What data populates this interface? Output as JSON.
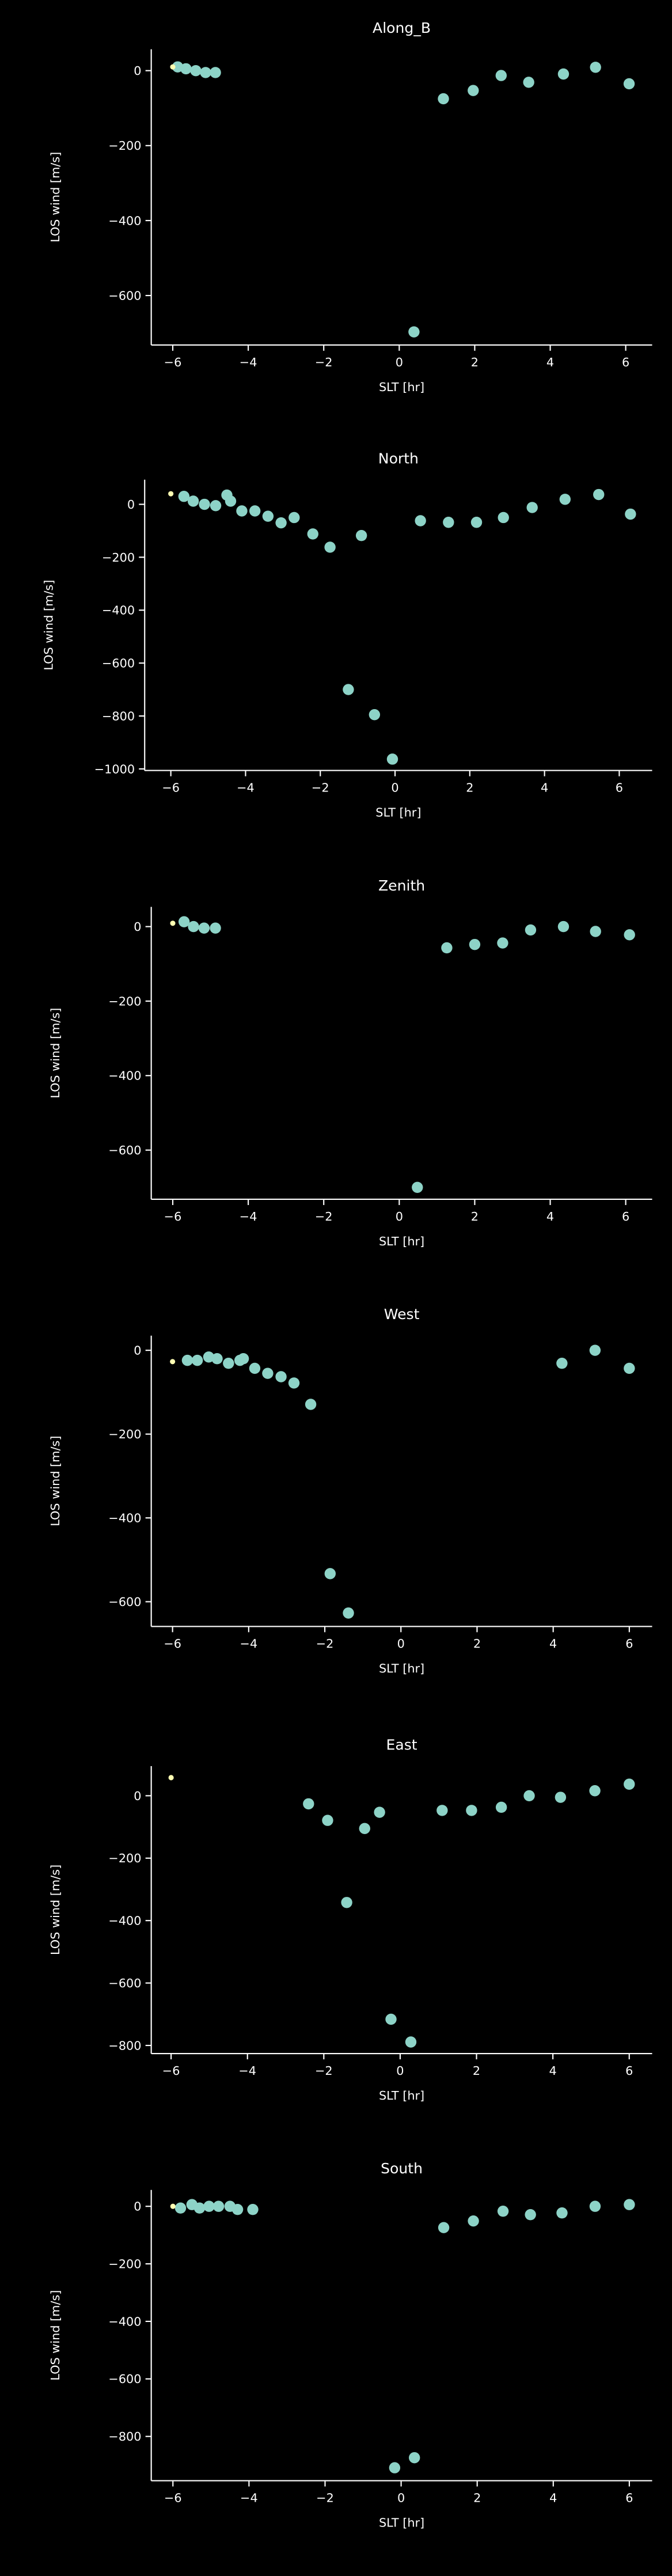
{
  "chart_data": [
    {
      "type": "scatter",
      "title": "Along_B",
      "xlabel": "SLT [hr]",
      "ylabel": "LOS wind [m/s]",
      "xlim": [
        -6.57,
        6.7
      ],
      "ylim": [
        -732,
        57
      ],
      "xticks": [
        {
          "value": -6,
          "label": "−6"
        },
        {
          "value": -4,
          "label": "−4"
        },
        {
          "value": -2,
          "label": "−2"
        },
        0,
        2,
        4,
        6
      ],
      "yticks": [
        0,
        {
          "value": -200,
          "label": "−200"
        },
        {
          "value": -400,
          "label": "−400"
        },
        {
          "value": -600,
          "label": "−600"
        }
      ],
      "series": [
        {
          "color": "#8dd3c7",
          "x": [
            -5.87,
            -5.65,
            -5.39,
            -5.13,
            -4.87,
            0.39,
            1.17,
            1.96,
            2.7,
            3.43,
            4.35,
            5.2,
            6.09
          ],
          "values": [
            10,
            5,
            0,
            -5,
            -5,
            -697,
            -75,
            -53,
            -13,
            -31,
            -9,
            9,
            -35
          ]
        },
        {
          "color": "#ffffb3",
          "x": [
            -6.0
          ],
          "values": [
            10
          ]
        }
      ]
    },
    {
      "type": "scatter",
      "title": "North",
      "xlabel": "SLT [hr]",
      "ylabel": "LOS wind [m/s]",
      "xlim": [
        -6.7,
        6.88
      ],
      "ylim": [
        -1006,
        93
      ],
      "xticks": [
        {
          "value": -6,
          "label": "−6"
        },
        {
          "value": -4,
          "label": "−4"
        },
        {
          "value": -2,
          "label": "−2"
        },
        0,
        2,
        4,
        6
      ],
      "yticks": [
        0,
        {
          "value": -200,
          "label": "−200"
        },
        {
          "value": -400,
          "label": "−400"
        },
        {
          "value": -600,
          "label": "−600"
        },
        {
          "value": -800,
          "label": "−800"
        },
        {
          "value": -1000,
          "label": "−1000"
        }
      ],
      "series": [
        {
          "color": "#8dd3c7",
          "x": [
            -5.65,
            -5.4,
            -5.1,
            -4.8,
            -4.5,
            -4.4,
            -4.1,
            -3.75,
            -3.4,
            -3.05,
            -2.7,
            -2.2,
            -1.74,
            -1.25,
            -0.9,
            -0.55,
            -0.07,
            0.68,
            1.43,
            2.18,
            2.9,
            3.67,
            4.55,
            5.45,
            6.3
          ],
          "values": [
            30,
            12,
            0,
            -5,
            35,
            12,
            -25,
            -25,
            -45,
            -70,
            -50,
            -112,
            -162,
            -700,
            -118,
            -795,
            -963,
            -62,
            -68,
            -68,
            -50,
            -12,
            19,
            37,
            -37
          ]
        },
        {
          "color": "#ffffb3",
          "x": [
            -6.0
          ],
          "values": [
            40
          ]
        }
      ]
    },
    {
      "type": "scatter",
      "title": "Zenith",
      "xlabel": "SLT [hr]",
      "ylabel": "LOS wind [m/s]",
      "xlim": [
        -6.57,
        6.7
      ],
      "ylim": [
        -732,
        53
      ],
      "xticks": [
        {
          "value": -6,
          "label": "−6"
        },
        {
          "value": -4,
          "label": "−4"
        },
        {
          "value": -2,
          "label": "−2"
        },
        0,
        2,
        4,
        6
      ],
      "yticks": [
        0,
        {
          "value": -200,
          "label": "−200"
        },
        {
          "value": -400,
          "label": "−400"
        },
        {
          "value": -600,
          "label": "−600"
        }
      ],
      "series": [
        {
          "color": "#8dd3c7",
          "x": [
            -5.7,
            -5.45,
            -5.17,
            -4.87,
            0.48,
            1.26,
            2.0,
            2.74,
            3.48,
            4.35,
            5.2,
            6.1
          ],
          "values": [
            13,
            0,
            -4,
            -4,
            -700,
            -57,
            -48,
            -44,
            -9,
            0,
            -13,
            -22
          ]
        },
        {
          "color": "#ffffb3",
          "x": [
            -6.0
          ],
          "values": [
            9
          ]
        }
      ]
    },
    {
      "type": "scatter",
      "title": "West",
      "xlabel": "SLT [hr]",
      "ylabel": "LOS wind [m/s]",
      "xlim": [
        -6.56,
        6.6
      ],
      "ylim": [
        -659,
        35
      ],
      "xticks": [
        {
          "value": -6,
          "label": "−6"
        },
        {
          "value": -4,
          "label": "−4"
        },
        {
          "value": -2,
          "label": "−2"
        },
        0,
        2,
        4,
        6
      ],
      "yticks": [
        0,
        {
          "value": -200,
          "label": "−200"
        },
        {
          "value": -400,
          "label": "−400"
        },
        {
          "value": -600,
          "label": "−600"
        }
      ],
      "series": [
        {
          "color": "#8dd3c7",
          "x": [
            -5.61,
            -5.35,
            -5.05,
            -4.83,
            -4.53,
            -4.23,
            -4.14,
            -3.84,
            -3.5,
            -3.15,
            -2.81,
            -2.37,
            -1.86,
            -1.38,
            4.23,
            5.1,
            6.0
          ],
          "values": [
            -24,
            -24,
            -16,
            -20,
            -31,
            -24,
            -20,
            -43,
            -55,
            -63,
            -78,
            -129,
            -533,
            -627,
            -31,
            0,
            -43
          ]
        },
        {
          "color": "#ffffb3",
          "x": [
            -6.0
          ],
          "values": [
            -27
          ]
        }
      ]
    },
    {
      "type": "scatter",
      "title": "East",
      "xlabel": "SLT [hr]",
      "ylabel": "LOS wind [m/s]",
      "xlim": [
        -6.52,
        6.6
      ],
      "ylim": [
        -826,
        95
      ],
      "xticks": [
        {
          "value": -6,
          "label": "−6"
        },
        {
          "value": -4,
          "label": "−4"
        },
        {
          "value": -2,
          "label": "−2"
        },
        0,
        2,
        4,
        6
      ],
      "yticks": [
        0,
        {
          "value": -200,
          "label": "−200"
        },
        {
          "value": -400,
          "label": "−400"
        },
        {
          "value": -600,
          "label": "−600"
        },
        {
          "value": -800,
          "label": "−800"
        }
      ],
      "series": [
        {
          "color": "#8dd3c7",
          "x": [
            -2.4,
            -1.9,
            -1.4,
            -0.93,
            -0.54,
            -0.24,
            0.28,
            1.1,
            1.87,
            2.65,
            3.38,
            4.2,
            5.1,
            6.0
          ],
          "values": [
            -26,
            -79,
            -342,
            -105,
            -53,
            -716,
            -789,
            -47,
            -47,
            -37,
            0,
            -5,
            16,
            37
          ]
        },
        {
          "color": "#ffffb3",
          "x": [
            -6.0
          ],
          "values": [
            58
          ]
        }
      ]
    },
    {
      "type": "scatter",
      "title": "South",
      "xlabel": "SLT [hr]",
      "ylabel": "LOS wind [m/s]",
      "xlim": [
        -6.57,
        6.6
      ],
      "ylim": [
        -954,
        57
      ],
      "xticks": [
        {
          "value": -6,
          "label": "−6"
        },
        {
          "value": -4,
          "label": "−4"
        },
        {
          "value": -2,
          "label": "−2"
        },
        0,
        2,
        4,
        6
      ],
      "yticks": [
        0,
        {
          "value": -200,
          "label": "−200"
        },
        {
          "value": -400,
          "label": "−400"
        },
        {
          "value": -600,
          "label": "−600"
        },
        {
          "value": -800,
          "label": "−800"
        }
      ],
      "series": [
        {
          "color": "#8dd3c7",
          "x": [
            -5.8,
            -5.5,
            -5.3,
            -5.05,
            -4.8,
            -4.5,
            -4.3,
            -3.9,
            -0.17,
            0.35,
            1.12,
            1.9,
            2.68,
            3.4,
            4.23,
            5.1,
            6.0
          ],
          "values": [
            -6,
            6,
            -6,
            0,
            0,
            0,
            -11,
            -11,
            -909,
            -874,
            -74,
            -51,
            -17,
            -29,
            -23,
            0,
            6
          ]
        },
        {
          "color": "#ffffb3",
          "x": [
            -6.0
          ],
          "values": [
            0
          ]
        }
      ]
    }
  ]
}
